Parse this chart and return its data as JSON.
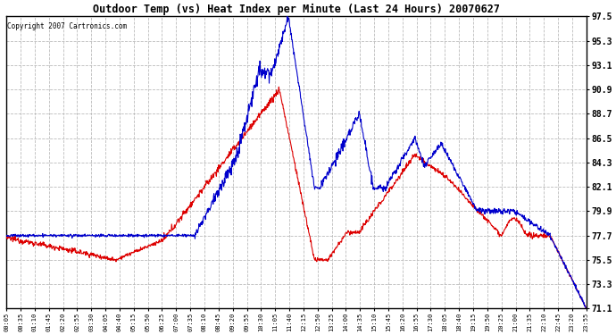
{
  "title": "Outdoor Temp (vs) Heat Index per Minute (Last 24 Hours) 20070627",
  "copyright": "Copyright 2007 Cartronics.com",
  "ylabel_right_ticks": [
    97.5,
    95.3,
    93.1,
    90.9,
    88.7,
    86.5,
    84.3,
    82.1,
    79.9,
    77.7,
    75.5,
    73.3,
    71.1
  ],
  "ymin": 71.1,
  "ymax": 97.5,
  "bg_color": "#ffffff",
  "plot_bg_color": "#ffffff",
  "grid_color": "#bbbbbb",
  "red_line_color": "#dd0000",
  "blue_line_color": "#0000cc",
  "x_labels": [
    "00:05",
    "00:35",
    "01:10",
    "01:45",
    "02:20",
    "02:55",
    "03:30",
    "04:05",
    "04:40",
    "05:15",
    "05:50",
    "06:25",
    "07:00",
    "07:35",
    "08:10",
    "08:45",
    "09:20",
    "09:55",
    "10:30",
    "11:05",
    "11:40",
    "12:15",
    "12:50",
    "13:25",
    "14:00",
    "14:35",
    "15:10",
    "15:45",
    "16:20",
    "16:55",
    "17:30",
    "18:05",
    "18:40",
    "19:15",
    "19:50",
    "20:25",
    "21:00",
    "21:35",
    "22:10",
    "22:45",
    "23:20",
    "23:55"
  ],
  "n_minutes": 1440
}
